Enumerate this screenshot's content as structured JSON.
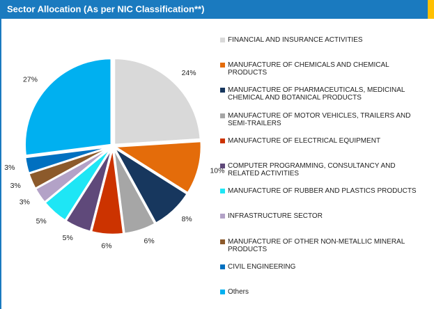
{
  "chart_data": {
    "type": "pie",
    "title": "Sector Allocation (As per NIC Classification**)",
    "categories": [
      "FINANCIAL AND INSURANCE ACTIVITIES",
      "MANUFACTURE OF CHEMICALS AND CHEMICAL PRODUCTS",
      "MANUFACTURE OF PHARMACEUTICALS, MEDICINAL CHEMICAL AND BOTANICAL PRODUCTS",
      "MANUFACTURE OF MOTOR VEHICLES, TRAILERS AND SEMI-TRAILERS",
      "MANUFACTURE OF ELECTRICAL EQUIPMENT",
      "COMPUTER PROGRAMMING, CONSULTANCY AND RELATED ACTIVITIES",
      "MANUFACTURE OF RUBBER AND PLASTICS PRODUCTS",
      "INFRASTRUCTURE SECTOR",
      "MANUFACTURE OF OTHER NON-METALLIC MINERAL PRODUCTS",
      "CIVIL ENGINEERING",
      "Others"
    ],
    "values": [
      24,
      10,
      8,
      6,
      6,
      5,
      5,
      3,
      3,
      3,
      27
    ],
    "value_labels": [
      "24%",
      "10%",
      "8%",
      "6%",
      "6%",
      "5%",
      "5%",
      "3%",
      "3%",
      "3%",
      "27%"
    ],
    "colors": [
      "#d9d9d9",
      "#e46c0a",
      "#17375e",
      "#a6a6a6",
      "#cc3300",
      "#5f497a",
      "#1ee6f5",
      "#b3a2c7",
      "#8c5a2b",
      "#0070c0",
      "#00b0f0"
    ],
    "legend": "right"
  }
}
